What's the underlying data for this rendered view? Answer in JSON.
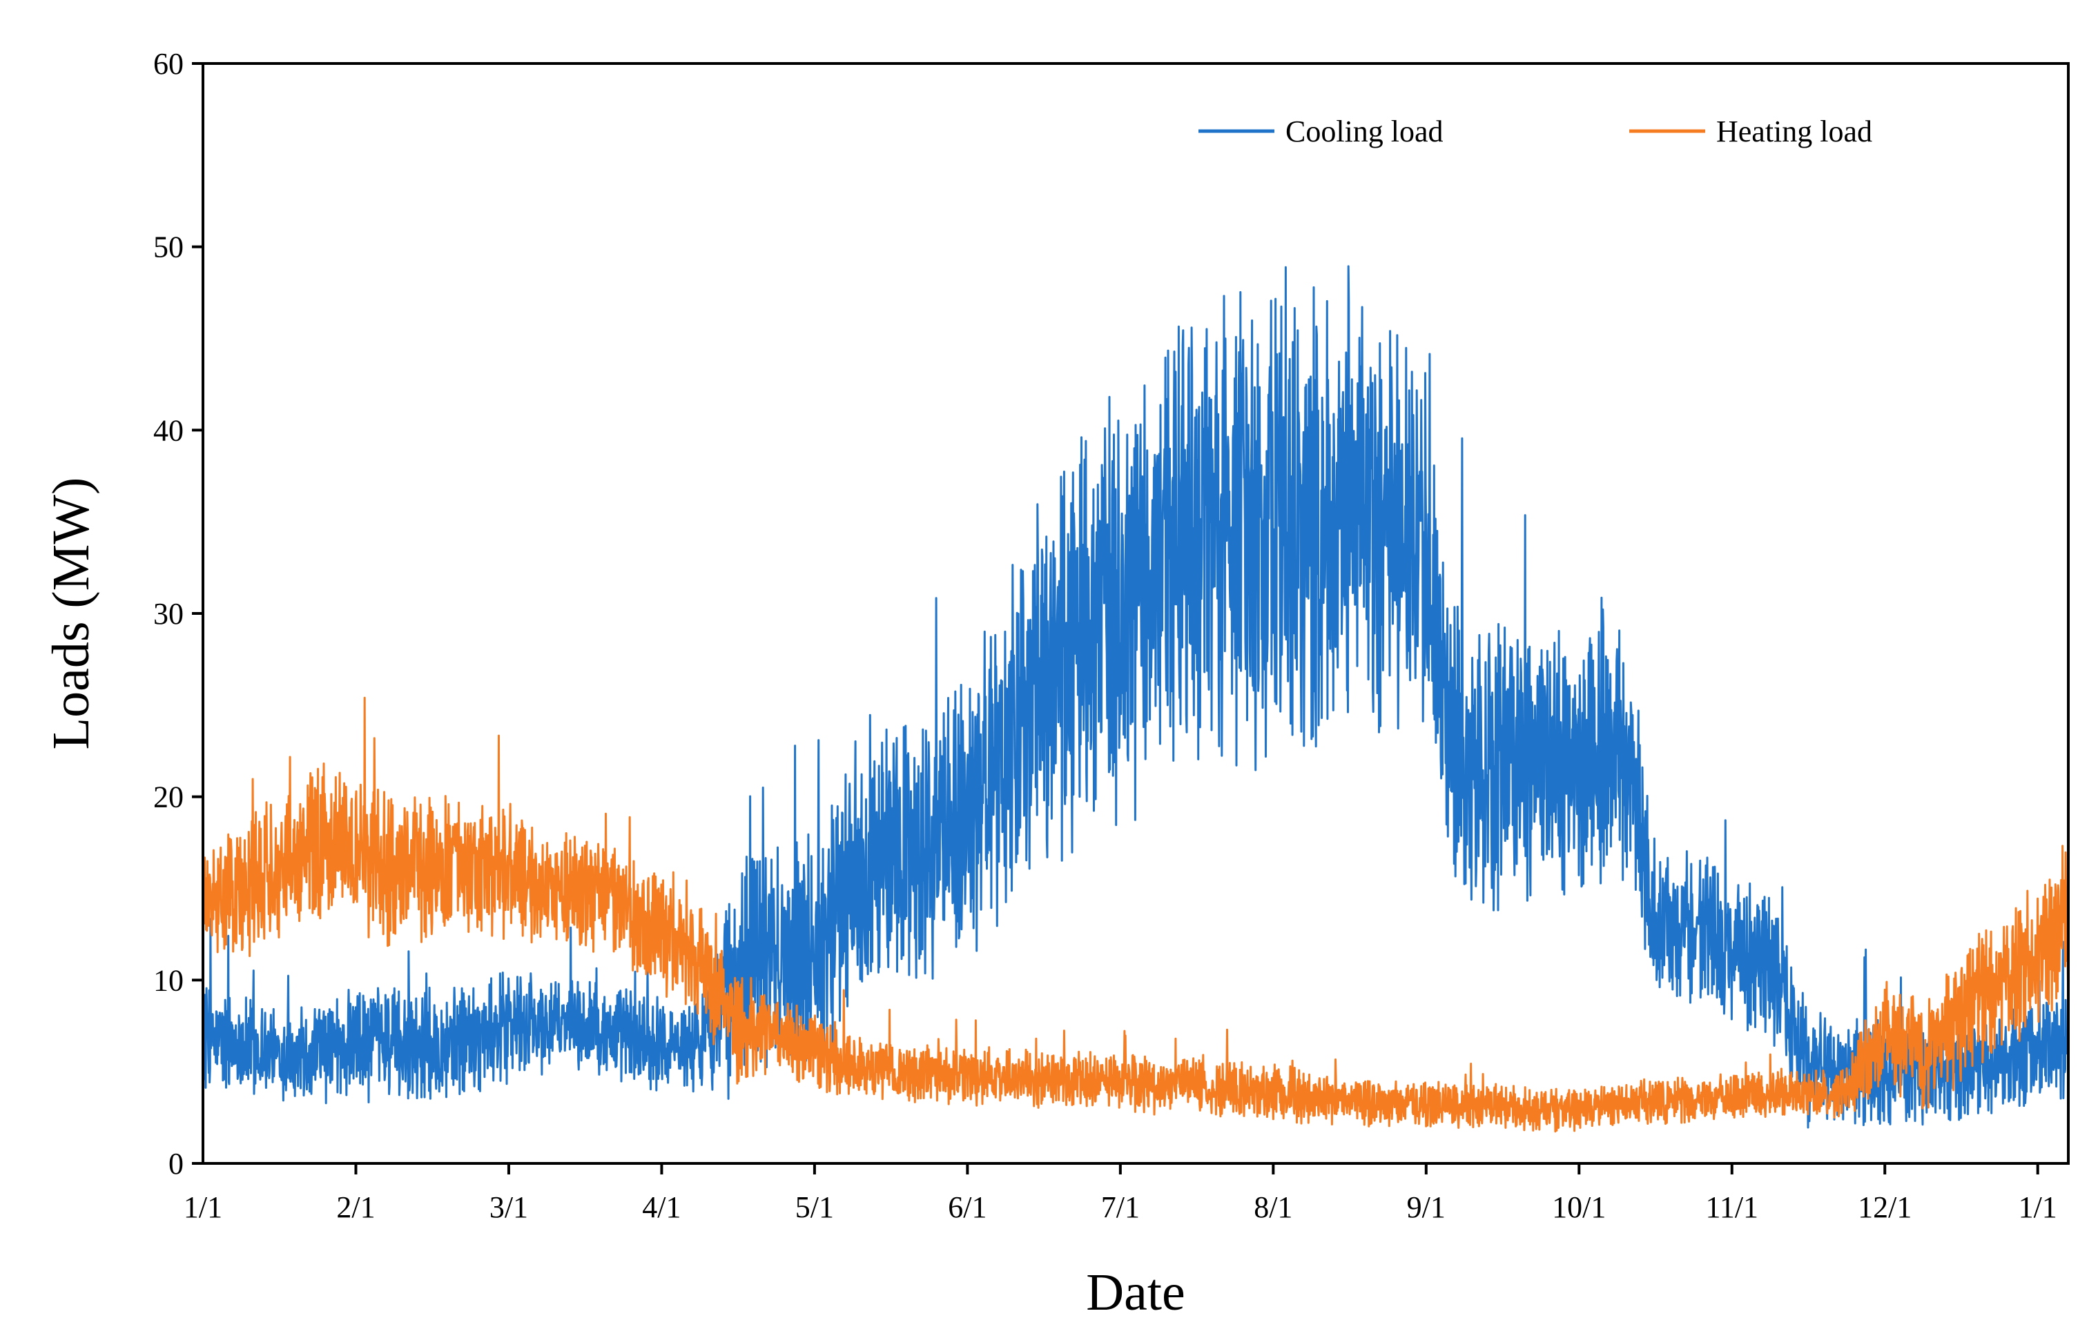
{
  "chart_data": {
    "type": "line",
    "title": "",
    "xlabel": "Date",
    "ylabel": "Loads (MW)",
    "ylim": [
      0,
      60
    ],
    "yticks": [
      0,
      10,
      20,
      30,
      40,
      50,
      60
    ],
    "xlim_months": [
      0,
      12.2
    ],
    "x_tick_labels": [
      "1/1",
      "2/1",
      "3/1",
      "4/1",
      "5/1",
      "6/1",
      "7/1",
      "8/1",
      "9/1",
      "10/1",
      "11/1",
      "12/1",
      "1/1"
    ],
    "x_tick_positions_months": [
      0,
      1,
      2,
      3,
      4,
      5,
      6,
      7,
      8,
      9,
      10,
      11,
      12
    ],
    "legend_position": "top-right",
    "series": [
      {
        "name": "Cooling load",
        "color": "#1f74c9",
        "x_months": [
          0.0,
          0.25,
          0.5,
          0.75,
          1.0,
          1.25,
          1.5,
          1.75,
          2.0,
          2.25,
          2.5,
          2.75,
          3.0,
          3.25,
          3.5,
          3.6,
          3.75,
          4.0,
          4.25,
          4.5,
          4.75,
          5.0,
          5.25,
          5.5,
          5.75,
          6.0,
          6.25,
          6.5,
          6.75,
          7.0,
          7.25,
          7.5,
          7.75,
          8.0,
          8.1,
          8.25,
          8.5,
          8.75,
          9.0,
          9.25,
          9.4,
          9.5,
          9.75,
          10.0,
          10.25,
          10.5,
          10.75,
          11.0,
          11.25,
          11.5,
          11.75,
          12.0,
          12.2
        ],
        "mean": [
          7,
          6.5,
          6,
          6,
          6.5,
          6.5,
          6.5,
          7,
          7.5,
          7.5,
          7.5,
          7,
          6.5,
          6.5,
          10,
          12,
          11,
          12,
          15,
          17,
          17,
          19,
          23,
          26,
          29,
          30,
          33,
          34,
          35,
          35,
          35,
          35,
          35,
          34,
          25,
          21,
          22,
          22,
          21,
          24,
          18,
          13,
          13,
          12,
          11,
          5,
          5,
          5,
          5,
          5,
          5.5,
          6,
          6.5
        ],
        "amp": [
          3,
          2.5,
          2.5,
          2.5,
          3,
          3,
          3,
          3,
          3,
          2.5,
          2.5,
          2.5,
          2.5,
          2.5,
          6,
          6,
          6,
          6,
          7,
          7,
          7,
          8,
          9,
          10,
          11,
          11,
          12,
          12,
          13,
          13,
          12,
          12,
          11,
          10,
          8,
          8,
          8,
          7,
          7,
          8,
          6,
          4,
          4,
          4,
          4,
          3,
          3,
          3,
          3,
          2.5,
          2.5,
          3,
          3
        ]
      },
      {
        "name": "Heating load",
        "color": "#f57c20",
        "x_months": [
          0.0,
          0.25,
          0.5,
          0.75,
          1.0,
          1.25,
          1.5,
          1.75,
          2.0,
          2.25,
          2.5,
          2.75,
          3.0,
          3.25,
          3.5,
          3.75,
          4.0,
          4.5,
          5.0,
          5.5,
          6.0,
          6.5,
          7.0,
          7.5,
          8.0,
          8.5,
          9.0,
          9.5,
          10.0,
          10.25,
          10.5,
          10.75,
          11.0,
          11.25,
          11.5,
          11.75,
          12.0,
          12.2
        ],
        "mean": [
          14,
          14.5,
          16.5,
          17.5,
          17,
          16,
          16,
          16,
          16,
          15,
          15,
          14,
          12.5,
          11,
          7.5,
          7,
          6,
          5,
          4.8,
          4.6,
          4.4,
          4.2,
          3.8,
          3.4,
          3.2,
          3,
          3,
          3.4,
          3.6,
          3.7,
          3.8,
          3.9,
          7,
          6,
          8,
          10,
          11,
          14
        ],
        "amp": [
          3,
          3.5,
          4,
          4,
          4,
          4,
          4,
          3.5,
          3.5,
          3,
          3,
          3,
          3,
          3,
          3,
          2,
          2,
          1.5,
          1.5,
          1.5,
          1.5,
          1.5,
          1.5,
          1.3,
          1.2,
          1.2,
          1.2,
          1.2,
          1.2,
          1.2,
          1.2,
          1.5,
          3,
          3,
          3.5,
          3.5,
          4,
          4
        ]
      }
    ]
  }
}
